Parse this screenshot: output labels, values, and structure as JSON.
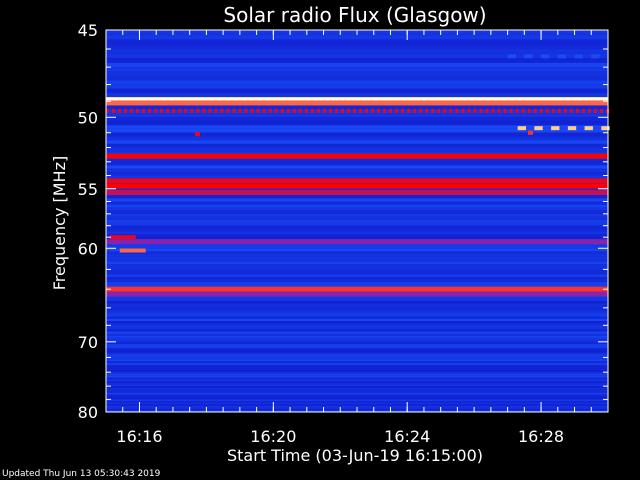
{
  "footer": {
    "updated": "Updated Thu Jun 13 05:30:43 2019"
  },
  "colors": {
    "background": "#000000",
    "low": "#0000c8",
    "mid": "#1e50ff",
    "high": "#ff0000",
    "peak": "#ffff99"
  },
  "chart_data": {
    "type": "heatmap",
    "title": "Solar radio Flux (Glasgow)",
    "xlabel": "Start Time (03-Jun-19 16:15:00)",
    "ylabel": "Frequency [MHz]",
    "x_unit": "minutes after 16:15:00",
    "xlim": [
      0,
      15
    ],
    "ylim": [
      45,
      80
    ],
    "y_scale": "reciprocal",
    "x_ticks": [
      {
        "value": 1,
        "label": "16:16"
      },
      {
        "value": 5,
        "label": "16:20"
      },
      {
        "value": 9,
        "label": "16:24"
      },
      {
        "value": 13,
        "label": "16:28"
      }
    ],
    "y_ticks": [
      {
        "value": 45,
        "label": "45"
      },
      {
        "value": 50,
        "label": "50"
      },
      {
        "value": 55,
        "label": "55"
      },
      {
        "value": 60,
        "label": "60"
      },
      {
        "value": 70,
        "label": "70"
      },
      {
        "value": 80,
        "label": "80"
      }
    ],
    "y_minor_ticks": [
      46,
      47,
      48,
      49,
      51,
      52,
      53,
      54,
      56,
      57,
      58,
      59,
      62,
      64,
      66,
      68,
      72,
      74,
      76,
      78
    ],
    "x_minor_step": 0.5,
    "bands": [
      {
        "freq": 48.9,
        "intensity": 1.0
      },
      {
        "freq": 49.1,
        "intensity": 0.85
      },
      {
        "freq": 52.6,
        "intensity": 0.75
      },
      {
        "freq": 54.4,
        "intensity": 0.7
      },
      {
        "freq": 54.8,
        "intensity": 0.75
      },
      {
        "freq": 55.3,
        "intensity": 0.6
      },
      {
        "freq": 59.4,
        "intensity": 0.45
      },
      {
        "freq": 64.0,
        "intensity": 0.8
      },
      {
        "freq": 64.5,
        "intensity": 0.45
      }
    ],
    "dashed_bands": [
      {
        "freq": 49.6,
        "x_start": 0,
        "x_end": 15,
        "intensity": 0.75
      },
      {
        "freq": 50.7,
        "x_start": 12.3,
        "x_end": 15,
        "intensity": 0.95
      },
      {
        "freq": 46.4,
        "x_start": 12.0,
        "x_end": 15,
        "intensity": 0.3
      }
    ],
    "spots": [
      {
        "x": 2.75,
        "freq": 51.1,
        "intensity": 0.7
      },
      {
        "x": 12.7,
        "freq": 51.0,
        "intensity": 0.8
      },
      {
        "x": 0.2,
        "freq": 59.0,
        "intensity": 0.7
      },
      {
        "x": 0.5,
        "freq": 60.2,
        "intensity": 0.85
      }
    ]
  }
}
